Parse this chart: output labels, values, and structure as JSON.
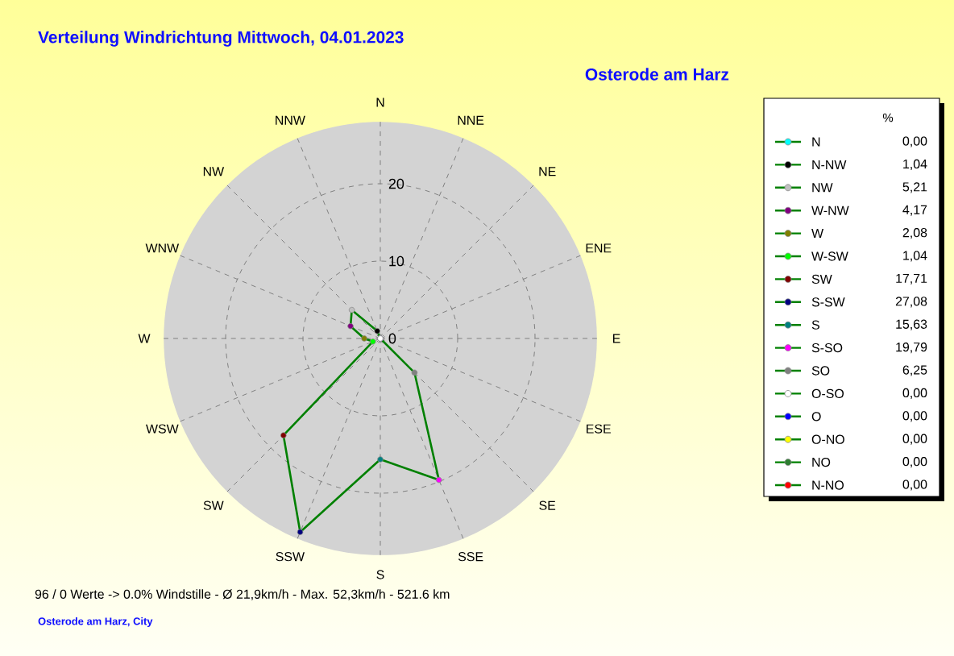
{
  "chart_data": {
    "type": "radar",
    "title": "Verteilung Windrichtung   Mittwoch, 04.01.2023",
    "subtitle": "Osterode am Harz",
    "legend_title": "%",
    "annotations": [
      "96 / 0 Werte  -> 0.0% Windstille   -   Ø 21,9km/h   -  Max. 52,3km/h   -   521.6 km",
      "Osterode am Harz, City",
      "N",
      "N-NW",
      "NW",
      "W-NW",
      "W",
      "W-SW",
      "SW",
      "S-SW",
      "S",
      "S-SO",
      "SO",
      "O-SO",
      "O",
      "O-NO",
      "NO",
      "N-NO",
      "0,00",
      "1,04",
      "5,21",
      "4,17",
      "2,08",
      "1,04",
      "17,71",
      "27,08",
      "15,63",
      "19,79",
      "6,25",
      "0,00",
      "0,00",
      "0,00",
      "0,00",
      "0,00"
    ],
    "categories": [
      "N",
      "NNE",
      "NE",
      "ENE",
      "E",
      "ESE",
      "SE",
      "SSE",
      "S",
      "SSW",
      "SW",
      "WSW",
      "W",
      "WNW",
      "NW",
      "NNW"
    ],
    "series": [
      {
        "color": "#008000",
        "values": [
          0,
          0,
          0,
          0,
          0,
          0,
          6.25,
          19.79,
          15.63,
          27.08,
          17.71,
          1.04,
          2.08,
          4.17,
          5.21,
          1.04
        ],
        "colors": [
          "#00ffff",
          "#ff0000",
          "#2e7d32",
          "#ffff00",
          "#0000ff",
          "#ffffff",
          "#808080",
          "#ff00ff",
          "#008080",
          "#000080",
          "#800000",
          "#00ff00",
          "#808000",
          "#800080",
          "#c0c0c0",
          "#000000"
        ]
      }
    ],
    "ylim": [
      0,
      28
    ],
    "yticks": [
      0,
      10,
      20
    ],
    "grid": true,
    "marker": "circle",
    "line_style": "solid"
  }
}
